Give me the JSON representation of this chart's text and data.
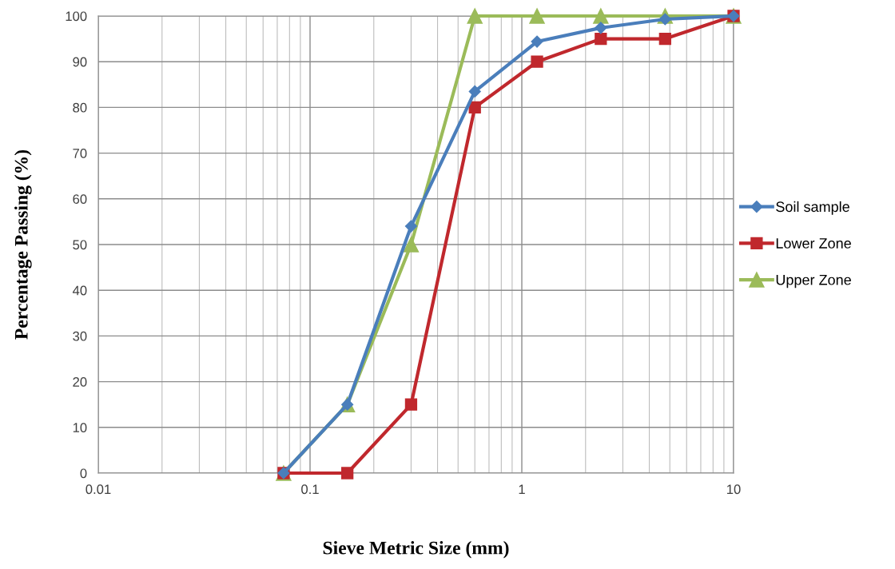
{
  "chart_data": {
    "type": "line",
    "xlabel": "Sieve Metric Size (mm)",
    "ylabel": "Percentage Passing (%)",
    "log": "x",
    "xlim": [
      0.01,
      10
    ],
    "xticks": [
      {
        "value": 0.01,
        "label": "0.01"
      },
      {
        "value": 0.1,
        "label": "0.1"
      },
      {
        "value": 1,
        "label": "1"
      },
      {
        "value": 10,
        "label": "10"
      }
    ],
    "ylim": [
      0,
      100
    ],
    "yticks": [
      0,
      10,
      20,
      30,
      40,
      50,
      60,
      70,
      80,
      90,
      100
    ],
    "grid": true,
    "legend": "right",
    "x": [
      0.075,
      0.15,
      0.3,
      0.6,
      1.18,
      2.36,
      4.75,
      10
    ],
    "series": [
      {
        "name": "Soil sample",
        "color": "#4a7ebb",
        "marker": "diamond",
        "values": [
          0,
          15,
          54,
          83.5,
          94.4,
          97.4,
          99.3,
          100
        ]
      },
      {
        "name": "Lower Zone",
        "color": "#c0282d",
        "marker": "square",
        "values": [
          0,
          0,
          15,
          80,
          90,
          95,
          95,
          100
        ]
      },
      {
        "name": "Upper Zone",
        "color": "#9bbb59",
        "marker": "triangle",
        "values": [
          0,
          15,
          50,
          100,
          100,
          100,
          100,
          100
        ]
      }
    ]
  }
}
